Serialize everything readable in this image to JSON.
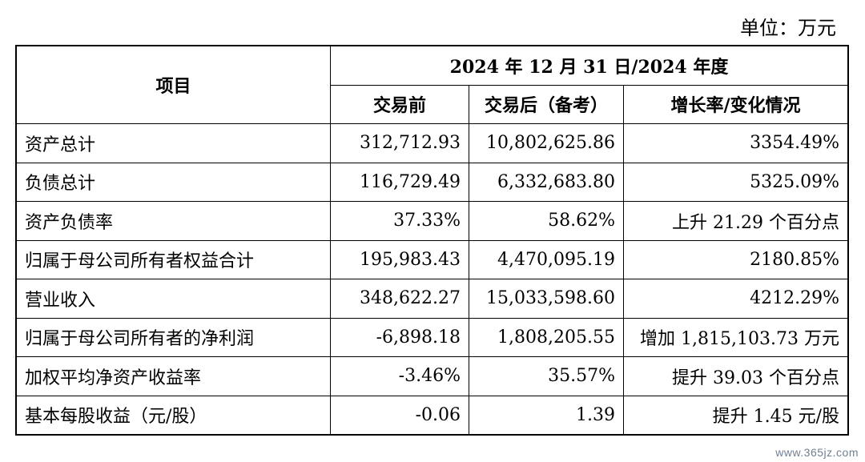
{
  "unit_label": "单位：万元",
  "table": {
    "header": {
      "item_label": "项目",
      "period_label": "2024 年 12 月 31 日/2024 年度",
      "columns": [
        "交易前",
        "交易后（备考）",
        "增长率/变化情况"
      ]
    },
    "rows": [
      {
        "label": "资产总计",
        "before": "312,712.93",
        "after": "10,802,625.86",
        "change": "3354.49%"
      },
      {
        "label": "负债总计",
        "before": "116,729.49",
        "after": "6,332,683.80",
        "change": "5325.09%"
      },
      {
        "label": "资产负债率",
        "before": "37.33%",
        "after": "58.62%",
        "change": "上升 21.29 个百分点"
      },
      {
        "label": "归属于母公司所有者权益合计",
        "before": "195,983.43",
        "after": "4,470,095.19",
        "change": "2180.85%"
      },
      {
        "label": "营业收入",
        "before": "348,622.27",
        "after": "15,033,598.60",
        "change": "4212.29%"
      },
      {
        "label": "归属于母公司所有者的净利润",
        "before": "-6,898.18",
        "after": "1,808,205.55",
        "change": "增加 1,815,103.73 万元"
      },
      {
        "label": "加权平均净资产收益率",
        "before": "-3.46%",
        "after": "35.57%",
        "change": "提升 39.03 个百分点"
      },
      {
        "label": "基本每股收益（元/股）",
        "before": "-0.06",
        "after": "1.39",
        "change": "提升 1.45 元/股"
      }
    ]
  },
  "watermark": "www.365jz.com"
}
